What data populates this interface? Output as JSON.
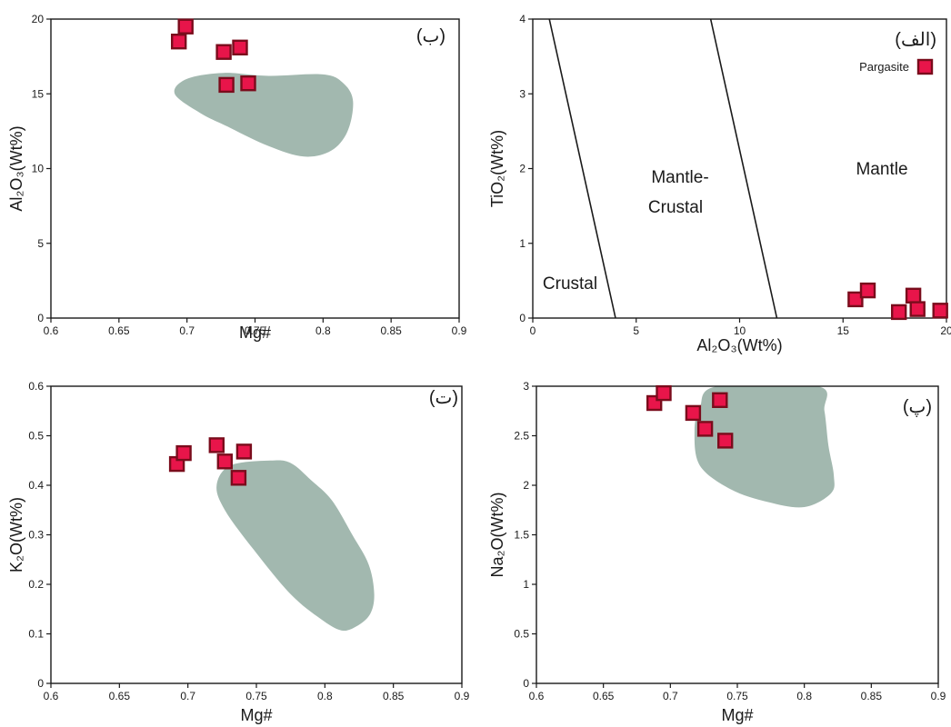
{
  "colors": {
    "field": "#a2b8af",
    "marker_fill": "#e8154a",
    "marker_stroke": "#7a0c1c",
    "axis": "#1a1a1a"
  },
  "chart_data": [
    {
      "panel": "top-left",
      "type": "scatter",
      "label": "(ب)",
      "xlabel": "Mg#",
      "ylabel": "Al₂O₃(Wt%)",
      "xlim": [
        0.6,
        0.9
      ],
      "ylim": [
        0,
        20
      ],
      "xticks": [
        "0.6",
        "0.65",
        "0.7",
        "0.75",
        "0.8",
        "0.85",
        "0.9"
      ],
      "yticks": [
        "0",
        "5",
        "10",
        "15",
        "20"
      ],
      "series": [
        {
          "name": "Pargasite",
          "points": [
            [
              0.694,
              18.5
            ],
            [
              0.699,
              19.5
            ],
            [
              0.727,
              17.8
            ],
            [
              0.739,
              18.1
            ],
            [
              0.729,
              15.6
            ],
            [
              0.745,
              15.7
            ]
          ]
        }
      ],
      "field": [
        [
          0.727,
          16.4
        ],
        [
          0.76,
          16.2
        ],
        [
          0.8,
          16.3
        ],
        [
          0.815,
          15.7
        ],
        [
          0.822,
          14.5
        ],
        [
          0.818,
          12.5
        ],
        [
          0.806,
          11.2
        ],
        [
          0.786,
          10.8
        ],
        [
          0.76,
          11.5
        ],
        [
          0.73,
          12.8
        ],
        [
          0.71,
          13.7
        ],
        [
          0.691,
          15.0
        ],
        [
          0.7,
          16.0
        ]
      ]
    },
    {
      "panel": "top-right",
      "type": "scatter",
      "label": "(الف)",
      "xlabel": "Al₂O₃(Wt%)",
      "ylabel": "TiO₂(Wt%)",
      "xlim": [
        0,
        20
      ],
      "ylim": [
        0,
        4
      ],
      "xticks": [
        "0",
        "5",
        "10",
        "15",
        "20"
      ],
      "yticks": [
        "0",
        "1",
        "2",
        "3",
        "4"
      ],
      "regions": [
        "Crustal",
        "Mantle-",
        "Crustal",
        "Mantle"
      ],
      "boundaries": [
        [
          [
            0.8,
            4.0
          ],
          [
            4.0,
            0.0
          ]
        ],
        [
          [
            8.6,
            4.0
          ],
          [
            11.8,
            0.0
          ]
        ]
      ],
      "legend": [
        "Pargasite"
      ],
      "series": [
        {
          "name": "Pargasite",
          "points": [
            [
              15.6,
              0.25
            ],
            [
              16.2,
              0.37
            ],
            [
              17.7,
              0.08
            ],
            [
              18.4,
              0.3
            ],
            [
              18.6,
              0.12
            ],
            [
              19.7,
              0.1
            ]
          ]
        }
      ]
    },
    {
      "panel": "bottom-left",
      "type": "scatter",
      "label": "(ت)",
      "xlabel": "Mg#",
      "ylabel": "K₂O(Wt%)",
      "xlim": [
        0.6,
        0.9
      ],
      "ylim": [
        0,
        0.6
      ],
      "xticks": [
        "0.6",
        "0.65",
        "0.7",
        "0.75",
        "0.8",
        "0.85",
        "0.9"
      ],
      "yticks": [
        "0",
        "0.1",
        "0.2",
        "0.3",
        "0.4",
        "0.5",
        "0.6"
      ],
      "series": [
        {
          "name": "Pargasite",
          "points": [
            [
              0.692,
              0.443
            ],
            [
              0.697,
              0.465
            ],
            [
              0.721,
              0.481
            ],
            [
              0.727,
              0.448
            ],
            [
              0.741,
              0.468
            ],
            [
              0.737,
              0.415
            ]
          ]
        }
      ],
      "field": [
        [
          0.731,
          0.44
        ],
        [
          0.76,
          0.45
        ],
        [
          0.775,
          0.445
        ],
        [
          0.79,
          0.41
        ],
        [
          0.805,
          0.37
        ],
        [
          0.82,
          0.3
        ],
        [
          0.832,
          0.24
        ],
        [
          0.836,
          0.18
        ],
        [
          0.833,
          0.14
        ],
        [
          0.823,
          0.115
        ],
        [
          0.812,
          0.107
        ],
        [
          0.797,
          0.13
        ],
        [
          0.775,
          0.18
        ],
        [
          0.748,
          0.27
        ],
        [
          0.727,
          0.35
        ],
        [
          0.721,
          0.4
        ]
      ]
    },
    {
      "panel": "bottom-right",
      "type": "scatter",
      "label": "(پ)",
      "xlabel": "Mg#",
      "ylabel": "Na₂O(Wt%)",
      "xlim": [
        0.6,
        0.9
      ],
      "ylim": [
        0,
        3
      ],
      "xticks": [
        "0.6",
        "0.65",
        "0.7",
        "0.75",
        "0.8",
        "0.85",
        "0.9"
      ],
      "yticks": [
        "0",
        "0.5",
        "1",
        "1.5",
        "2",
        "2.5",
        "3"
      ],
      "series": [
        {
          "name": "Pargasite",
          "points": [
            [
              0.688,
              2.83
            ],
            [
              0.695,
              2.93
            ],
            [
              0.717,
              2.73
            ],
            [
              0.726,
              2.57
            ],
            [
              0.737,
              2.86
            ],
            [
              0.741,
              2.45
            ]
          ]
        }
      ],
      "field": [
        [
          0.735,
          3.0
        ],
        [
          0.81,
          3.0
        ],
        [
          0.815,
          2.75
        ],
        [
          0.818,
          2.4
        ],
        [
          0.822,
          2.1
        ],
        [
          0.82,
          1.92
        ],
        [
          0.8,
          1.78
        ],
        [
          0.773,
          1.83
        ],
        [
          0.745,
          1.96
        ],
        [
          0.722,
          2.2
        ],
        [
          0.718,
          2.55
        ],
        [
          0.722,
          2.78
        ]
      ]
    }
  ]
}
